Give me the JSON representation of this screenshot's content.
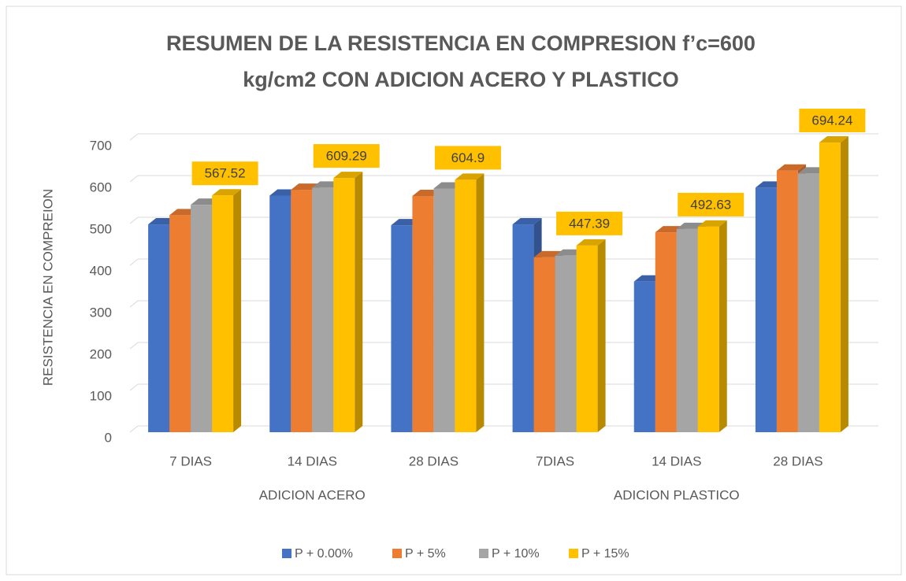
{
  "chart_data": {
    "type": "bar3d",
    "title_lines": [
      "RESUMEN DE LA RESISTENCIA EN COMPRESION f’c=600",
      "kg/cm2 CON ADICION ACERO Y PLASTICO"
    ],
    "y_label": "RESISTENCIA EN COMPREION",
    "categories": [
      "7 DIAS",
      "14 DIAS",
      "28 DIAS",
      "7DIAS",
      "14 DIAS",
      "28 DIAS"
    ],
    "groups": [
      "ADICION ACERO",
      "ADICION PLASTICO"
    ],
    "series": [
      {
        "name": "P + 0.00%",
        "color": "#4472c4",
        "values": [
          498,
          567,
          496,
          498,
          361,
          586
        ]
      },
      {
        "name": "P + 5%",
        "color": "#ed7d31",
        "values": [
          520,
          581,
          566,
          419,
          479,
          627
        ]
      },
      {
        "name": "P + 10%",
        "color": "#a5a5a5",
        "values": [
          545,
          586,
          584,
          423,
          487,
          620
        ]
      },
      {
        "name": "P + 15%",
        "color": "#ffc000",
        "values": [
          567.52,
          609.29,
          604.9,
          447.39,
          492.63,
          694.24
        ],
        "data_labels": true
      }
    ],
    "ylim": [
      0,
      700
    ],
    "yticks": [
      0,
      100,
      200,
      300,
      400,
      500,
      600,
      700
    ],
    "grid": true,
    "legend": "bottom"
  }
}
